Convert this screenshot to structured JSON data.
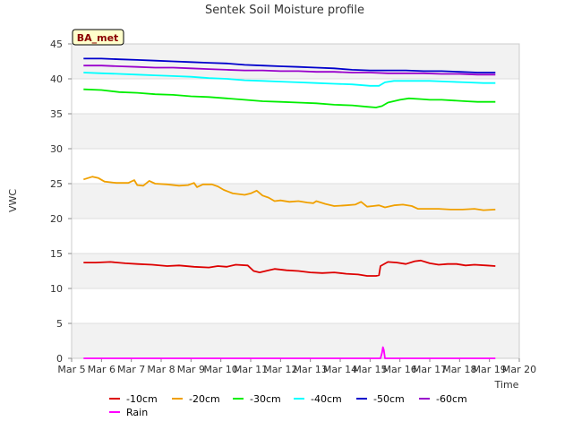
{
  "chart_data": {
    "type": "line",
    "title": "Sentek Soil Moisture profile",
    "site_label": "BA_met",
    "xlabel": "Time",
    "ylabel": "VWC",
    "xlim": [
      5,
      20
    ],
    "ylim": [
      0,
      45
    ],
    "x_ticks": [
      {
        "value": 5,
        "label": "Mar 5"
      },
      {
        "value": 6,
        "label": "Mar 6"
      },
      {
        "value": 7,
        "label": "Mar 7"
      },
      {
        "value": 8,
        "label": "Mar 8"
      },
      {
        "value": 9,
        "label": "Mar 9"
      },
      {
        "value": 10,
        "label": "Mar 10"
      },
      {
        "value": 11,
        "label": "Mar 11"
      },
      {
        "value": 12,
        "label": "Mar 12"
      },
      {
        "value": 13,
        "label": "Mar 13"
      },
      {
        "value": 14,
        "label": "Mar 14"
      },
      {
        "value": 15,
        "label": "Mar 15"
      },
      {
        "value": 16,
        "label": "Mar 16"
      },
      {
        "value": 17,
        "label": "Mar 17"
      },
      {
        "value": 18,
        "label": "Mar 18"
      },
      {
        "value": 19,
        "label": "Mar 19"
      },
      {
        "value": 20,
        "label": "Mar 20"
      }
    ],
    "y_ticks": [
      0,
      5,
      10,
      15,
      20,
      25,
      30,
      35,
      40,
      45
    ],
    "grid": true,
    "legend_position": "bottom",
    "series": [
      {
        "name": "-10cm",
        "color": "#dd0000",
        "points": [
          [
            5.4,
            13.7
          ],
          [
            5.8,
            13.7
          ],
          [
            6.3,
            13.8
          ],
          [
            6.8,
            13.6
          ],
          [
            7.2,
            13.5
          ],
          [
            7.7,
            13.4
          ],
          [
            8.2,
            13.2
          ],
          [
            8.6,
            13.3
          ],
          [
            9.1,
            13.1
          ],
          [
            9.6,
            13.0
          ],
          [
            9.9,
            13.2
          ],
          [
            10.2,
            13.1
          ],
          [
            10.5,
            13.4
          ],
          [
            10.9,
            13.3
          ],
          [
            11.1,
            12.5
          ],
          [
            11.3,
            12.3
          ],
          [
            11.6,
            12.6
          ],
          [
            11.8,
            12.8
          ],
          [
            12.2,
            12.6
          ],
          [
            12.6,
            12.5
          ],
          [
            13.0,
            12.3
          ],
          [
            13.4,
            12.2
          ],
          [
            13.8,
            12.3
          ],
          [
            14.2,
            12.1
          ],
          [
            14.6,
            12.0
          ],
          [
            14.9,
            11.8
          ],
          [
            15.2,
            11.8
          ],
          [
            15.3,
            11.9
          ],
          [
            15.35,
            13.2
          ],
          [
            15.6,
            13.8
          ],
          [
            15.9,
            13.7
          ],
          [
            16.2,
            13.5
          ],
          [
            16.5,
            13.9
          ],
          [
            16.7,
            14.0
          ],
          [
            17.0,
            13.6
          ],
          [
            17.3,
            13.4
          ],
          [
            17.6,
            13.5
          ],
          [
            17.9,
            13.5
          ],
          [
            18.2,
            13.3
          ],
          [
            18.5,
            13.4
          ],
          [
            18.9,
            13.3
          ],
          [
            19.2,
            13.2
          ]
        ]
      },
      {
        "name": "-20cm",
        "color": "#f0a000",
        "points": [
          [
            5.4,
            25.6
          ],
          [
            5.7,
            26.0
          ],
          [
            5.9,
            25.8
          ],
          [
            6.1,
            25.3
          ],
          [
            6.5,
            25.1
          ],
          [
            6.9,
            25.1
          ],
          [
            7.1,
            25.5
          ],
          [
            7.2,
            24.8
          ],
          [
            7.4,
            24.7
          ],
          [
            7.6,
            25.4
          ],
          [
            7.8,
            25.0
          ],
          [
            8.2,
            24.9
          ],
          [
            8.6,
            24.7
          ],
          [
            8.9,
            24.8
          ],
          [
            9.1,
            25.1
          ],
          [
            9.2,
            24.5
          ],
          [
            9.4,
            24.9
          ],
          [
            9.7,
            24.9
          ],
          [
            9.9,
            24.6
          ],
          [
            10.1,
            24.1
          ],
          [
            10.4,
            23.6
          ],
          [
            10.8,
            23.4
          ],
          [
            11.0,
            23.6
          ],
          [
            11.2,
            24.0
          ],
          [
            11.4,
            23.3
          ],
          [
            11.6,
            23.0
          ],
          [
            11.8,
            22.5
          ],
          [
            12.0,
            22.6
          ],
          [
            12.3,
            22.4
          ],
          [
            12.6,
            22.5
          ],
          [
            12.9,
            22.3
          ],
          [
            13.1,
            22.2
          ],
          [
            13.2,
            22.5
          ],
          [
            13.5,
            22.1
          ],
          [
            13.8,
            21.8
          ],
          [
            14.2,
            21.9
          ],
          [
            14.5,
            22.0
          ],
          [
            14.7,
            22.4
          ],
          [
            14.9,
            21.7
          ],
          [
            15.1,
            21.8
          ],
          [
            15.3,
            21.9
          ],
          [
            15.5,
            21.6
          ],
          [
            15.8,
            21.9
          ],
          [
            16.1,
            22.0
          ],
          [
            16.4,
            21.8
          ],
          [
            16.6,
            21.4
          ],
          [
            16.9,
            21.4
          ],
          [
            17.3,
            21.4
          ],
          [
            17.7,
            21.3
          ],
          [
            18.1,
            21.3
          ],
          [
            18.5,
            21.4
          ],
          [
            18.8,
            21.2
          ],
          [
            19.2,
            21.3
          ]
        ]
      },
      {
        "name": "-30cm",
        "color": "#00ee00",
        "points": [
          [
            5.4,
            38.5
          ],
          [
            6.0,
            38.4
          ],
          [
            6.6,
            38.1
          ],
          [
            7.2,
            38.0
          ],
          [
            7.8,
            37.8
          ],
          [
            8.4,
            37.7
          ],
          [
            9.0,
            37.5
          ],
          [
            9.6,
            37.4
          ],
          [
            10.2,
            37.2
          ],
          [
            10.8,
            37.0
          ],
          [
            11.4,
            36.8
          ],
          [
            12.0,
            36.7
          ],
          [
            12.6,
            36.6
          ],
          [
            13.2,
            36.5
          ],
          [
            13.8,
            36.3
          ],
          [
            14.4,
            36.2
          ],
          [
            14.9,
            36.0
          ],
          [
            15.2,
            35.9
          ],
          [
            15.4,
            36.1
          ],
          [
            15.6,
            36.6
          ],
          [
            16.0,
            37.0
          ],
          [
            16.3,
            37.2
          ],
          [
            16.7,
            37.1
          ],
          [
            17.0,
            37.0
          ],
          [
            17.4,
            37.0
          ],
          [
            17.8,
            36.9
          ],
          [
            18.2,
            36.8
          ],
          [
            18.6,
            36.7
          ],
          [
            19.2,
            36.7
          ]
        ]
      },
      {
        "name": "-40cm",
        "color": "#00ffff",
        "points": [
          [
            5.4,
            40.9
          ],
          [
            6.0,
            40.8
          ],
          [
            6.6,
            40.7
          ],
          [
            7.2,
            40.6
          ],
          [
            7.8,
            40.5
          ],
          [
            8.4,
            40.4
          ],
          [
            9.0,
            40.3
          ],
          [
            9.6,
            40.1
          ],
          [
            10.2,
            40.0
          ],
          [
            10.8,
            39.8
          ],
          [
            11.4,
            39.7
          ],
          [
            12.0,
            39.6
          ],
          [
            12.6,
            39.5
          ],
          [
            13.2,
            39.4
          ],
          [
            13.8,
            39.3
          ],
          [
            14.4,
            39.2
          ],
          [
            15.0,
            39.0
          ],
          [
            15.3,
            39.0
          ],
          [
            15.5,
            39.5
          ],
          [
            15.8,
            39.7
          ],
          [
            16.4,
            39.7
          ],
          [
            17.0,
            39.7
          ],
          [
            17.6,
            39.6
          ],
          [
            18.2,
            39.5
          ],
          [
            18.8,
            39.4
          ],
          [
            19.2,
            39.4
          ]
        ]
      },
      {
        "name": "-50cm",
        "color": "#0000cc",
        "points": [
          [
            5.4,
            42.9
          ],
          [
            6.0,
            42.9
          ],
          [
            6.6,
            42.8
          ],
          [
            7.2,
            42.7
          ],
          [
            7.8,
            42.6
          ],
          [
            8.4,
            42.5
          ],
          [
            9.0,
            42.4
          ],
          [
            9.6,
            42.3
          ],
          [
            10.2,
            42.2
          ],
          [
            10.8,
            42.0
          ],
          [
            11.4,
            41.9
          ],
          [
            12.0,
            41.8
          ],
          [
            12.6,
            41.7
          ],
          [
            13.2,
            41.6
          ],
          [
            13.8,
            41.5
          ],
          [
            14.4,
            41.3
          ],
          [
            15.0,
            41.2
          ],
          [
            15.6,
            41.2
          ],
          [
            16.2,
            41.2
          ],
          [
            16.8,
            41.1
          ],
          [
            17.4,
            41.1
          ],
          [
            18.0,
            41.0
          ],
          [
            18.6,
            40.9
          ],
          [
            19.2,
            40.9
          ]
        ]
      },
      {
        "name": "-60cm",
        "color": "#9900cc",
        "points": [
          [
            5.4,
            41.9
          ],
          [
            6.0,
            41.9
          ],
          [
            6.6,
            41.8
          ],
          [
            7.2,
            41.7
          ],
          [
            7.8,
            41.6
          ],
          [
            8.4,
            41.6
          ],
          [
            9.0,
            41.5
          ],
          [
            9.6,
            41.4
          ],
          [
            10.2,
            41.3
          ],
          [
            10.8,
            41.2
          ],
          [
            11.4,
            41.2
          ],
          [
            12.0,
            41.1
          ],
          [
            12.6,
            41.1
          ],
          [
            13.2,
            41.0
          ],
          [
            13.8,
            41.0
          ],
          [
            14.4,
            40.9
          ],
          [
            15.0,
            40.9
          ],
          [
            15.6,
            40.8
          ],
          [
            16.2,
            40.8
          ],
          [
            16.8,
            40.8
          ],
          [
            17.4,
            40.7
          ],
          [
            18.0,
            40.7
          ],
          [
            18.6,
            40.6
          ],
          [
            19.2,
            40.6
          ]
        ]
      },
      {
        "name": "Rain",
        "color": "#ff00ff",
        "points": [
          [
            5.4,
            0.0
          ],
          [
            15.35,
            0.0
          ],
          [
            15.4,
            0.8
          ],
          [
            15.43,
            1.6
          ],
          [
            15.46,
            1.2
          ],
          [
            15.5,
            0.0
          ],
          [
            19.2,
            0.0
          ]
        ]
      }
    ]
  }
}
